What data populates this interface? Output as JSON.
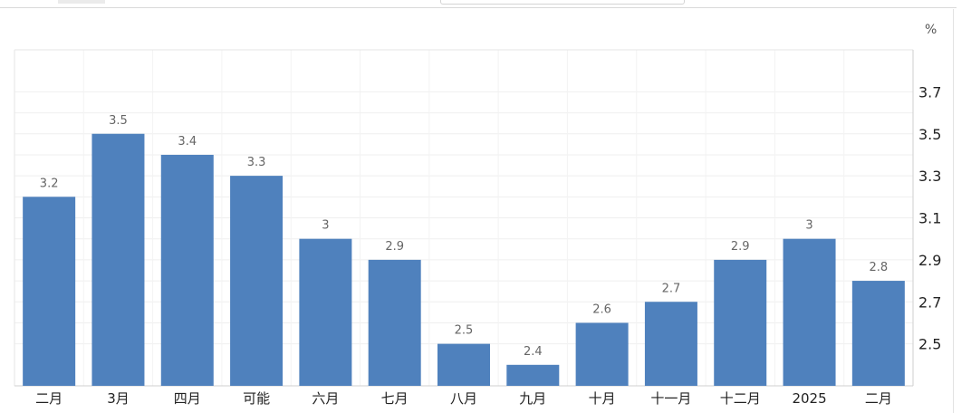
{
  "chart_data": {
    "type": "bar",
    "unit": "%",
    "categories": [
      "二月",
      "3月",
      "四月",
      "可能",
      "六月",
      "七月",
      "八月",
      "九月",
      "十月",
      "十一月",
      "十二月",
      "2025",
      "二月"
    ],
    "values": [
      3.2,
      3.5,
      3.4,
      3.3,
      3.0,
      2.9,
      2.5,
      2.4,
      2.6,
      2.7,
      2.9,
      3.0,
      2.8
    ],
    "value_labels": [
      "3.2",
      "3.5",
      "3.4",
      "3.3",
      "3",
      "2.9",
      "2.5",
      "2.4",
      "2.6",
      "2.7",
      "2.9",
      "3",
      "2.8"
    ],
    "y_ticks": [
      2.5,
      2.7,
      2.9,
      3.1,
      3.3,
      3.5,
      3.7
    ],
    "y_tick_labels": [
      "2.5",
      "2.7",
      "2.9",
      "3.1",
      "3.3",
      "3.5",
      "3.7"
    ],
    "ylim": [
      2.3,
      3.9
    ],
    "grid": true,
    "y_axis_side": "right",
    "bar_color": "#4f81bd"
  }
}
